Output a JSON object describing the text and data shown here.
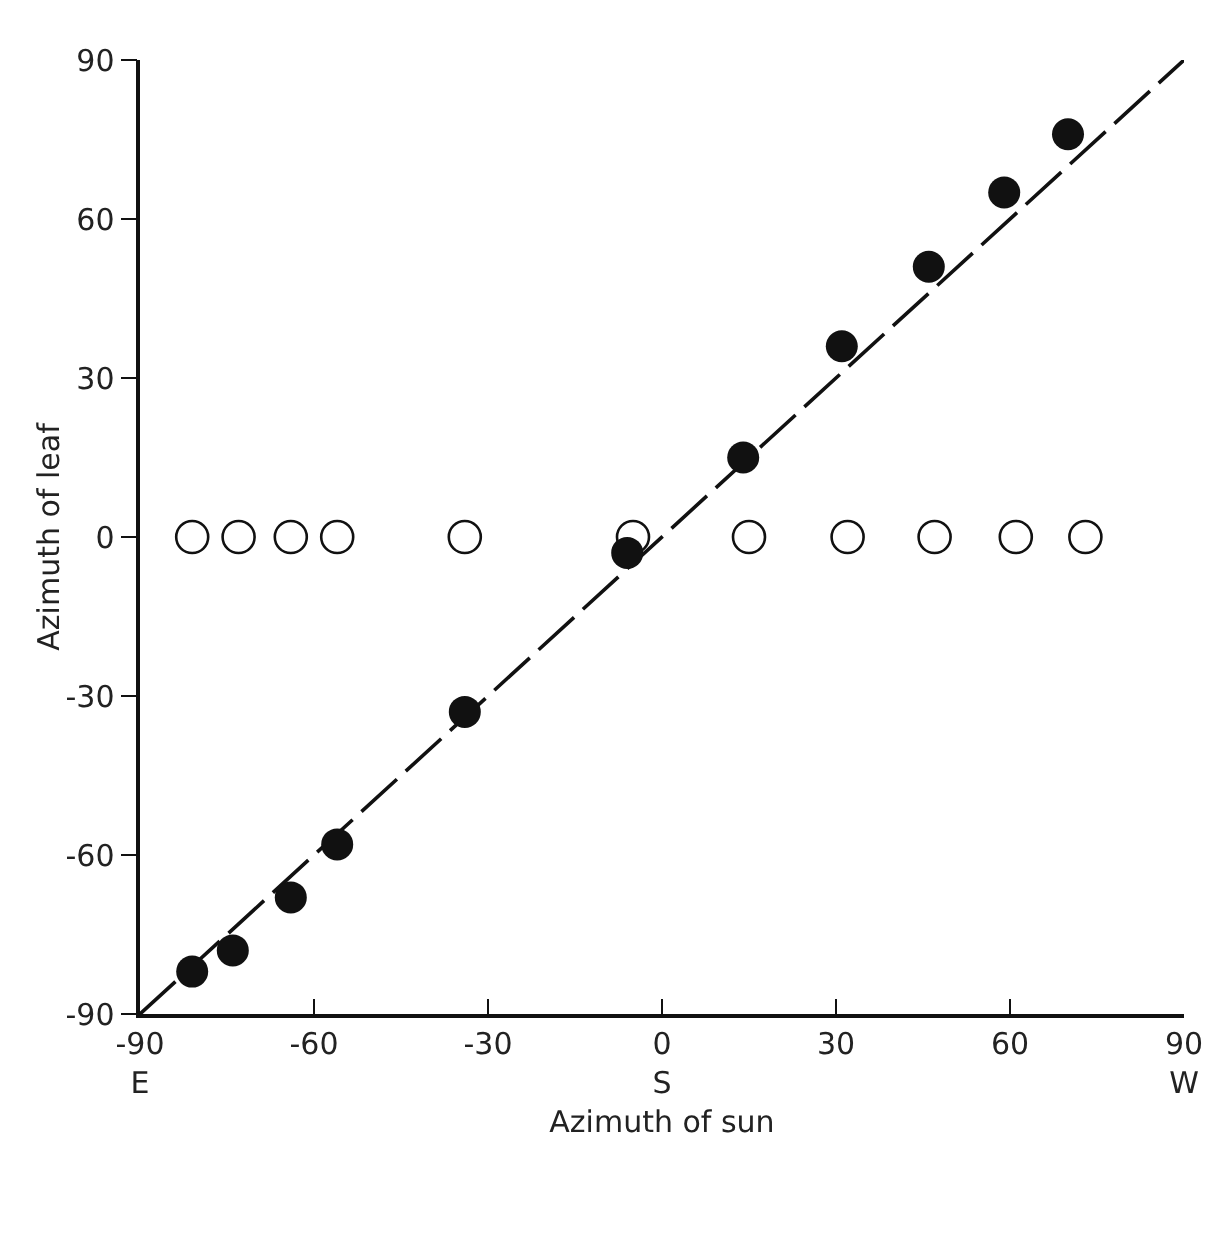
{
  "chart_data": {
    "type": "scatter",
    "xlabel": "Azimuth of sun",
    "ylabel": "Azimuth of leaf",
    "xlim": [
      -90,
      90
    ],
    "ylim": [
      -90,
      90
    ],
    "xticks": [
      {
        "value": -90,
        "label": "-90\nE"
      },
      -60,
      -30,
      {
        "value": 0,
        "label": "0\nS"
      },
      30,
      60,
      {
        "value": 90,
        "label": "90\nW"
      }
    ],
    "yticks": [
      -90,
      -60,
      -30,
      0,
      30,
      60,
      90
    ],
    "grid": false,
    "series": [
      {
        "type": "line",
        "color": "#111111",
        "line_style": "dashed",
        "marker": "none",
        "x": [
          -90,
          90
        ],
        "values": [
          -90,
          90
        ]
      },
      {
        "color": "#111111",
        "marker": "circle-open",
        "x": [
          -81,
          -73,
          -64,
          -56,
          -34,
          -5,
          15,
          32,
          47,
          61,
          73
        ],
        "values": [
          0,
          0,
          0,
          0,
          0,
          0,
          0,
          0,
          0,
          0,
          0
        ]
      },
      {
        "color": "#111111",
        "marker": "circle",
        "x": [
          -81,
          -74,
          -64,
          -56,
          -34,
          -6,
          14,
          31,
          46,
          59,
          70
        ],
        "values": [
          -82,
          -78,
          -68,
          -58,
          -33,
          -3,
          15,
          36,
          51,
          65,
          76
        ]
      }
    ]
  }
}
